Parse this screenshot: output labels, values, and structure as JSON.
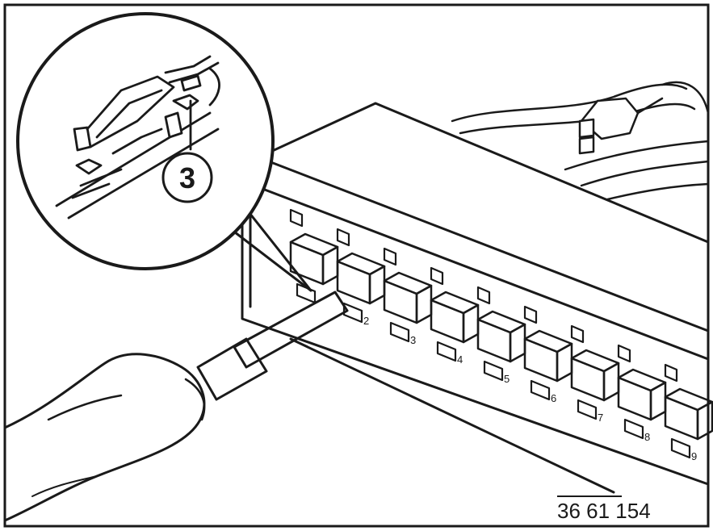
{
  "figure": {
    "reference_number": "36 61 154",
    "callout_label": "3"
  },
  "pins": {
    "count": 9,
    "labels": [
      "2",
      "3",
      "4",
      "5",
      "6",
      "7",
      "8",
      "9"
    ]
  },
  "colors": {
    "ink": "#1a1a1a",
    "paper": "#ffffff",
    "housing_shade": "#e8e8e8"
  }
}
